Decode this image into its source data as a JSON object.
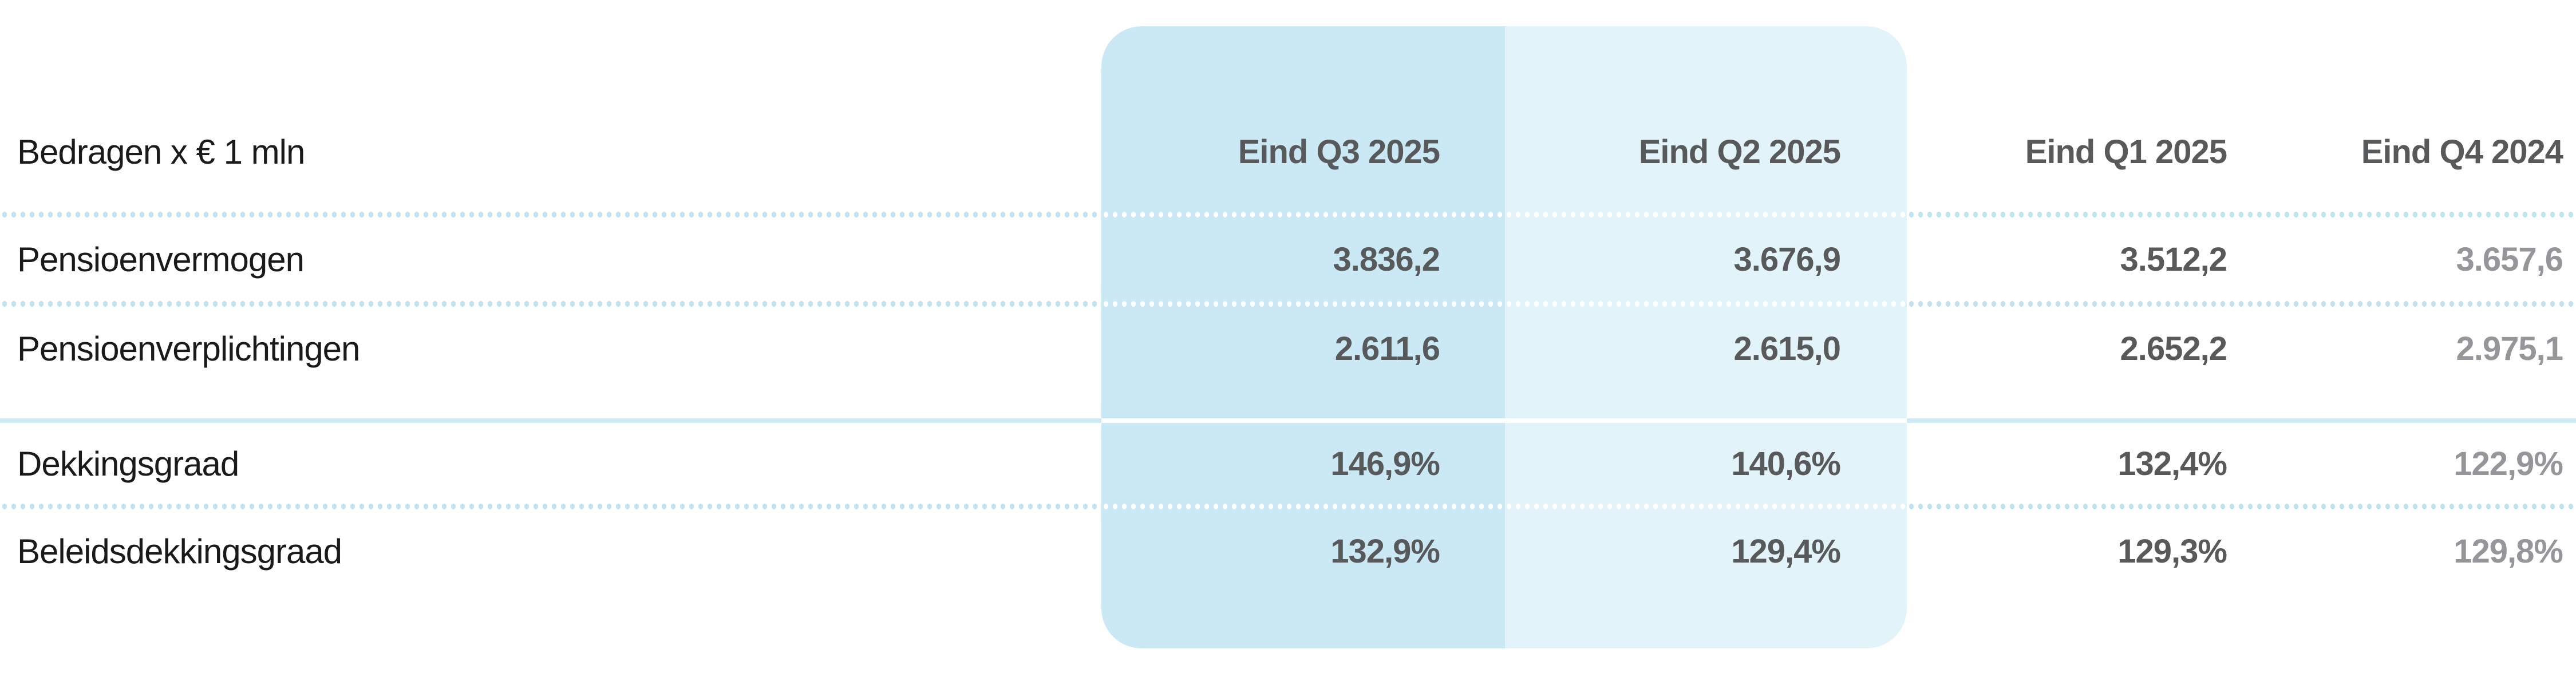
{
  "chart_data": {
    "type": "table",
    "unit_label": "Bedragen x € 1 mln",
    "columns": [
      "Eind Q3 2025",
      "Eind Q2 2025",
      "Eind Q1 2025",
      "Eind Q4 2024"
    ],
    "rows": [
      {
        "label": "Pensioenvermogen",
        "values": [
          "3.836,2",
          "3.676,9",
          "3.512,2",
          "3.657,6"
        ]
      },
      {
        "label": "Pensioenverplichtingen",
        "values": [
          "2.611,6",
          "2.615,0",
          "2.652,2",
          "2.975,1"
        ]
      },
      {
        "label": "Dekkingsgraad",
        "values": [
          "146,9%",
          "140,6%",
          "132,4%",
          "122,9%"
        ]
      },
      {
        "label": "Beleidsdekkingsgraad",
        "values": [
          "132,9%",
          "129,4%",
          "129,3%",
          "129,8%"
        ]
      }
    ],
    "layout_hints": {
      "highlighted_columns": [
        "Eind Q3 2025",
        "Eind Q2 2025"
      ],
      "muted_column": "Eind Q4 2024",
      "section_break_after_row": "Pensioenverplichtingen"
    }
  },
  "colors": {
    "accent_cyan": "#19a3db",
    "highlight_dark": "#cbe9f4",
    "highlight_light": "#e3f3fa",
    "value_gray": "#58595b",
    "muted_gray": "#949699",
    "label_black": "#1a1a1a",
    "dotted_line_blue": "#bfe3f1",
    "solid_line_blue": "#cdeaf5",
    "background": "#ffffff"
  }
}
